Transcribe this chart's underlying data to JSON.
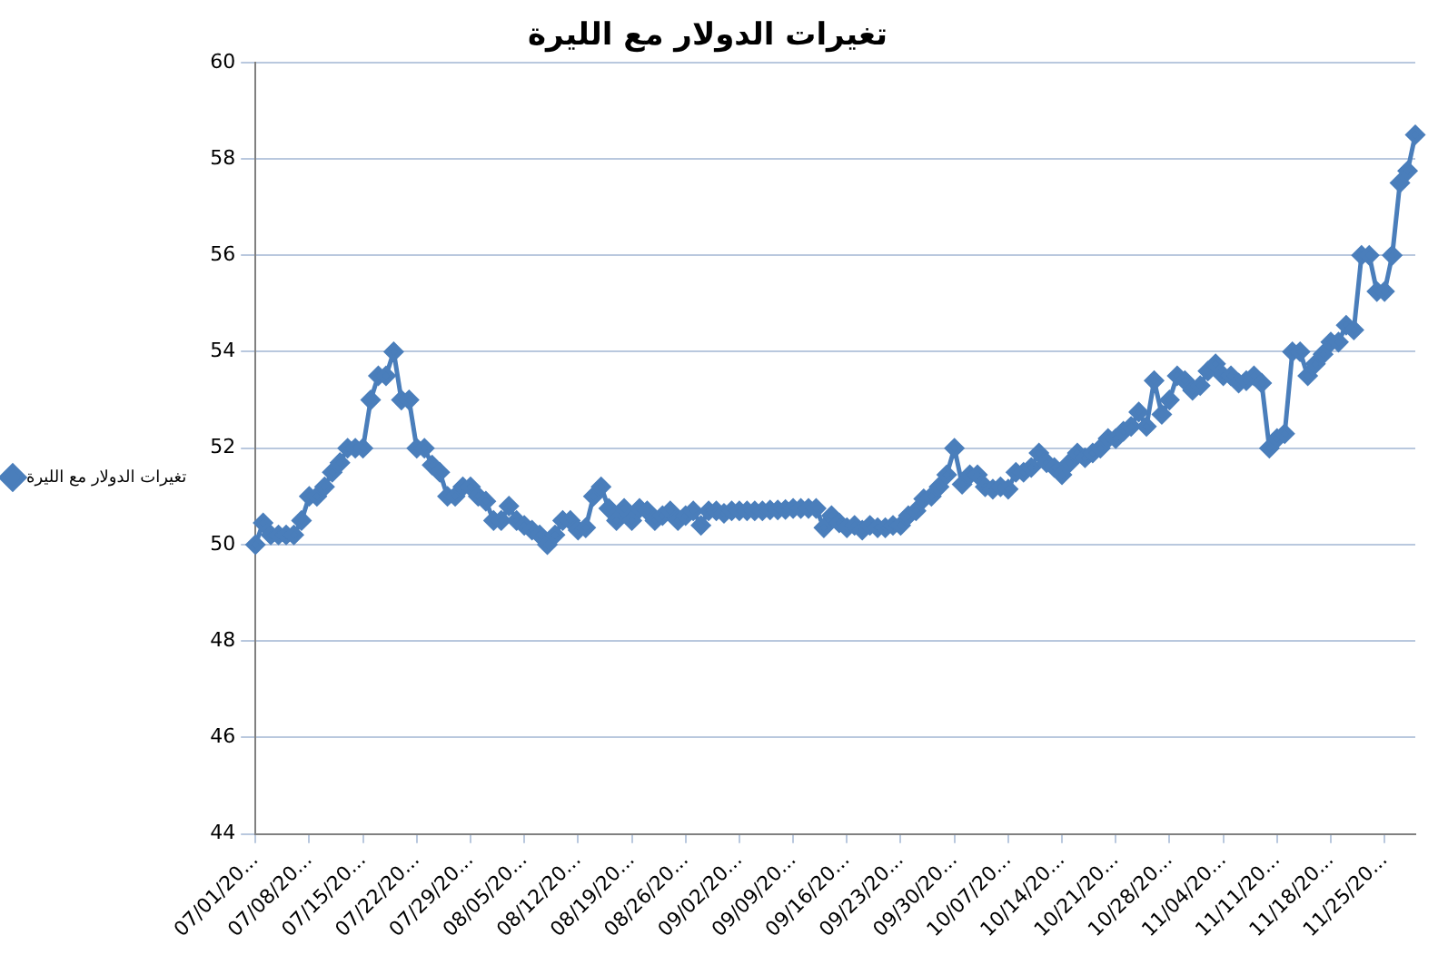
{
  "chart_data": {
    "type": "line",
    "title": "تغيرات الدولار مع الليرة",
    "categories": [
      "07/01/20...",
      null,
      null,
      null,
      null,
      null,
      null,
      "07/08/20...",
      null,
      null,
      null,
      null,
      null,
      null,
      "07/15/20...",
      null,
      null,
      null,
      null,
      null,
      null,
      "07/22/20...",
      null,
      null,
      null,
      null,
      null,
      null,
      "07/29/20...",
      null,
      null,
      null,
      null,
      null,
      null,
      "08/05/20...",
      null,
      null,
      null,
      null,
      null,
      null,
      "08/12/20...",
      null,
      null,
      null,
      null,
      null,
      null,
      "08/19/20...",
      null,
      null,
      null,
      null,
      null,
      null,
      "08/26/20...",
      null,
      null,
      null,
      null,
      null,
      null,
      "09/02/20...",
      null,
      null,
      null,
      null,
      null,
      null,
      "09/09/20...",
      null,
      null,
      null,
      null,
      null,
      null,
      "09/16/20...",
      null,
      null,
      null,
      null,
      null,
      null,
      "09/23/20...",
      null,
      null,
      null,
      null,
      null,
      null,
      "09/30/20...",
      null,
      null,
      null,
      null,
      null,
      null,
      "10/07/20...",
      null,
      null,
      null,
      null,
      null,
      null,
      "10/14/20...",
      null,
      null,
      null,
      null,
      null,
      null,
      "10/21/20...",
      null,
      null,
      null,
      null,
      null,
      null,
      "10/28/20...",
      null,
      null,
      null,
      null,
      null,
      null,
      "11/04/20...",
      null,
      null,
      null,
      null,
      null,
      null,
      "11/11/20...",
      null,
      null,
      null,
      null,
      null,
      null,
      "11/18/20...",
      null,
      null,
      null,
      null,
      null,
      null,
      "11/25/20...",
      null,
      null,
      null,
      null
    ],
    "series": [
      {
        "name": "تغيرات الدولار مع الليرة",
        "color": "#4a7ebb",
        "values": [
          50.0,
          50.45,
          50.2,
          50.2,
          50.2,
          50.2,
          50.5,
          51.0,
          51.0,
          51.2,
          51.5,
          51.7,
          52.0,
          52.0,
          52.0,
          53.0,
          53.5,
          53.5,
          54.0,
          53.0,
          53.0,
          52.0,
          52.0,
          51.65,
          51.5,
          51.0,
          51.0,
          51.2,
          51.2,
          51.0,
          50.9,
          50.5,
          50.5,
          50.8,
          50.5,
          50.4,
          50.3,
          50.2,
          50.0,
          50.2,
          50.5,
          50.5,
          50.3,
          50.35,
          51.0,
          51.2,
          50.75,
          50.5,
          50.75,
          50.5,
          50.75,
          50.7,
          50.5,
          50.6,
          50.7,
          50.5,
          50.6,
          50.7,
          50.4,
          50.7,
          50.7,
          50.65,
          50.7,
          50.7,
          50.7,
          50.7,
          50.7,
          50.72,
          50.72,
          50.73,
          50.75,
          50.75,
          50.75,
          50.75,
          50.35,
          50.6,
          50.45,
          50.35,
          50.4,
          50.3,
          50.4,
          50.35,
          50.35,
          50.4,
          50.4,
          50.6,
          50.7,
          50.95,
          51.0,
          51.2,
          51.45,
          52.0,
          51.25,
          51.45,
          51.45,
          51.2,
          51.15,
          51.2,
          51.15,
          51.5,
          51.5,
          51.6,
          51.9,
          51.7,
          51.6,
          51.45,
          51.7,
          51.9,
          51.8,
          51.9,
          52.0,
          52.2,
          52.2,
          52.35,
          52.45,
          52.75,
          52.45,
          53.4,
          52.7,
          53.0,
          53.5,
          53.4,
          53.2,
          53.3,
          53.6,
          53.75,
          53.5,
          53.5,
          53.35,
          53.4,
          53.5,
          53.35,
          52.0,
          52.2,
          52.3,
          54.0,
          54.0,
          53.5,
          53.75,
          53.95,
          54.2,
          54.2,
          54.55,
          54.45,
          56.0,
          56.0,
          55.25,
          55.25,
          56.0,
          57.5,
          57.75,
          58.5
        ]
      }
    ],
    "ylim": [
      44,
      60
    ],
    "yticks": [
      44,
      46,
      48,
      50,
      52,
      54,
      56,
      58,
      60
    ],
    "grid": "y",
    "legend": "left",
    "marker": "diamond",
    "line_style": "solid"
  }
}
